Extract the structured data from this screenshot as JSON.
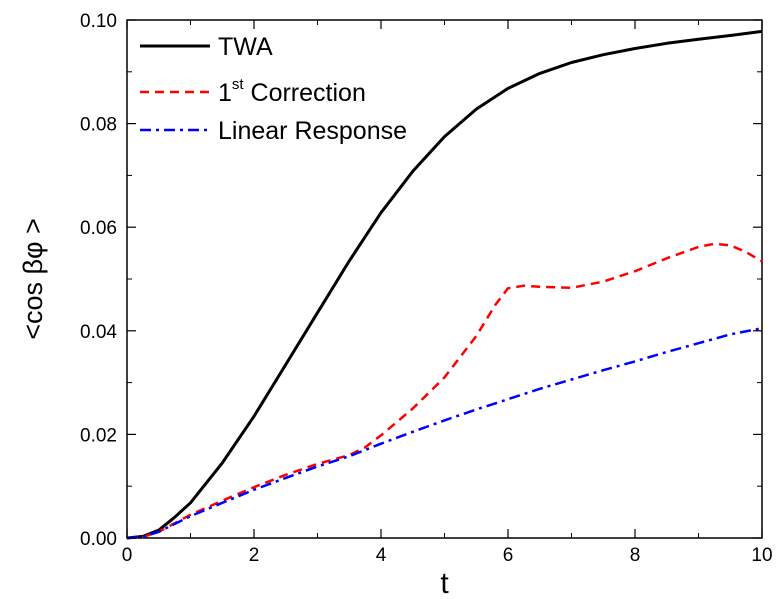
{
  "chart_data": {
    "type": "line",
    "xlabel": "t",
    "ylabel": "<cos βφ >",
    "xlim": [
      0,
      10
    ],
    "ylim": [
      0,
      0.1
    ],
    "x_ticks": [
      0,
      2,
      4,
      6,
      8,
      10
    ],
    "x_tick_labels": [
      "0",
      "2",
      "4",
      "6",
      "8",
      "10"
    ],
    "y_ticks": [
      0,
      0.02,
      0.04,
      0.06,
      0.08,
      0.1
    ],
    "y_tick_labels": [
      "0.00",
      "0.02",
      "0.04",
      "0.06",
      "0.08",
      "0.10"
    ],
    "grid": false,
    "legend_position": "top-left",
    "series": [
      {
        "name": "TWA",
        "name_main": "TWA",
        "style": "solid",
        "color": "#000000",
        "x": [
          0,
          0.25,
          0.5,
          0.75,
          1,
          1.5,
          2,
          2.5,
          3,
          3.5,
          4,
          4.5,
          5,
          5.5,
          6,
          6.5,
          7,
          7.5,
          8,
          8.5,
          9,
          9.5,
          10
        ],
        "y": [
          0,
          0.0003,
          0.0015,
          0.004,
          0.0068,
          0.0145,
          0.0235,
          0.0335,
          0.0435,
          0.0535,
          0.0628,
          0.0708,
          0.0775,
          0.0828,
          0.0868,
          0.0897,
          0.0918,
          0.0933,
          0.0945,
          0.0955,
          0.0963,
          0.097,
          0.0978
        ]
      },
      {
        "name": "1st Correction",
        "name_main": "1",
        "name_sup": "st",
        "name_rest": " Correction",
        "style": "dashed",
        "color": "#ff0000",
        "x": [
          0,
          0.25,
          0.5,
          1,
          1.5,
          2,
          2.5,
          3,
          3.5,
          3.75,
          4,
          4.5,
          5,
          5.5,
          5.8,
          6,
          6.25,
          6.5,
          7,
          7.5,
          8,
          8.5,
          9,
          9.25,
          9.5,
          9.75,
          10
        ],
        "y": [
          0,
          0.0002,
          0.0012,
          0.0045,
          0.0072,
          0.0098,
          0.0122,
          0.0143,
          0.016,
          0.0175,
          0.0198,
          0.025,
          0.031,
          0.039,
          0.045,
          0.0482,
          0.0487,
          0.0485,
          0.0483,
          0.0495,
          0.0515,
          0.054,
          0.0562,
          0.0568,
          0.0565,
          0.0552,
          0.0534
        ]
      },
      {
        "name": "Linear Response",
        "name_main": "Linear Response",
        "style": "dashdot",
        "color": "#0000ff",
        "x": [
          0,
          0.25,
          0.5,
          1,
          1.5,
          2,
          2.5,
          3,
          3.5,
          4,
          4.5,
          5,
          5.5,
          6,
          6.5,
          7,
          7.5,
          8,
          8.5,
          9,
          9.5,
          10
        ],
        "y": [
          0,
          0.0002,
          0.0012,
          0.0042,
          0.0068,
          0.0093,
          0.0116,
          0.0138,
          0.0158,
          0.0182,
          0.0205,
          0.0227,
          0.0248,
          0.0268,
          0.0288,
          0.0306,
          0.0324,
          0.0341,
          0.0359,
          0.0376,
          0.0393,
          0.0405
        ]
      }
    ]
  }
}
